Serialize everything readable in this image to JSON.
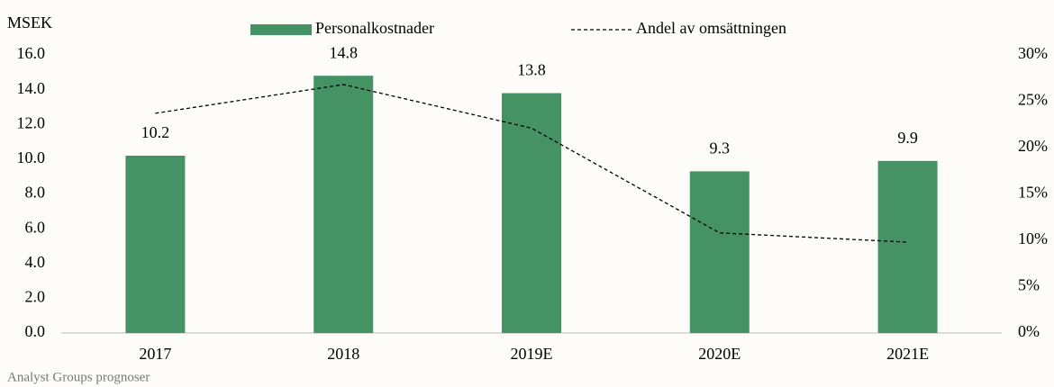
{
  "chart_data": {
    "type": "bar",
    "y_label": "MSEK",
    "source": "Analyst Groups prognoser",
    "categories": [
      "2017",
      "2018",
      "2019E",
      "2020E",
      "2021E"
    ],
    "series": [
      {
        "name": "Personalkostnader",
        "type": "bar",
        "color": "#459264",
        "values": [
          10.2,
          14.8,
          13.8,
          9.3,
          9.9
        ]
      },
      {
        "name": "Andel av omsättningen",
        "type": "line",
        "axis": "y2",
        "color": "#000000",
        "line_style": "dashed",
        "values": [
          23.7,
          26.8,
          22.1,
          10.8,
          9.8
        ]
      }
    ],
    "ylim": [
      0,
      16
    ],
    "yticks": [
      {
        "value": 0,
        "label": "0.0"
      },
      {
        "value": 2,
        "label": "2.0"
      },
      {
        "value": 4,
        "label": "4.0"
      },
      {
        "value": 6,
        "label": "6.0"
      },
      {
        "value": 8,
        "label": "8.0"
      },
      {
        "value": 10,
        "label": "10.0"
      },
      {
        "value": 12,
        "label": "12.0"
      },
      {
        "value": 14,
        "label": "14.0"
      },
      {
        "value": 16,
        "label": "16.0"
      }
    ],
    "y2lim": [
      0,
      30
    ],
    "y2ticks": [
      {
        "value": 0,
        "label": "0%"
      },
      {
        "value": 5,
        "label": "5%"
      },
      {
        "value": 10,
        "label": "10%"
      },
      {
        "value": 15,
        "label": "15%"
      },
      {
        "value": 20,
        "label": "20%"
      },
      {
        "value": 25,
        "label": "25%"
      },
      {
        "value": 30,
        "label": "30%"
      }
    ],
    "legend": "top",
    "grid": false
  }
}
